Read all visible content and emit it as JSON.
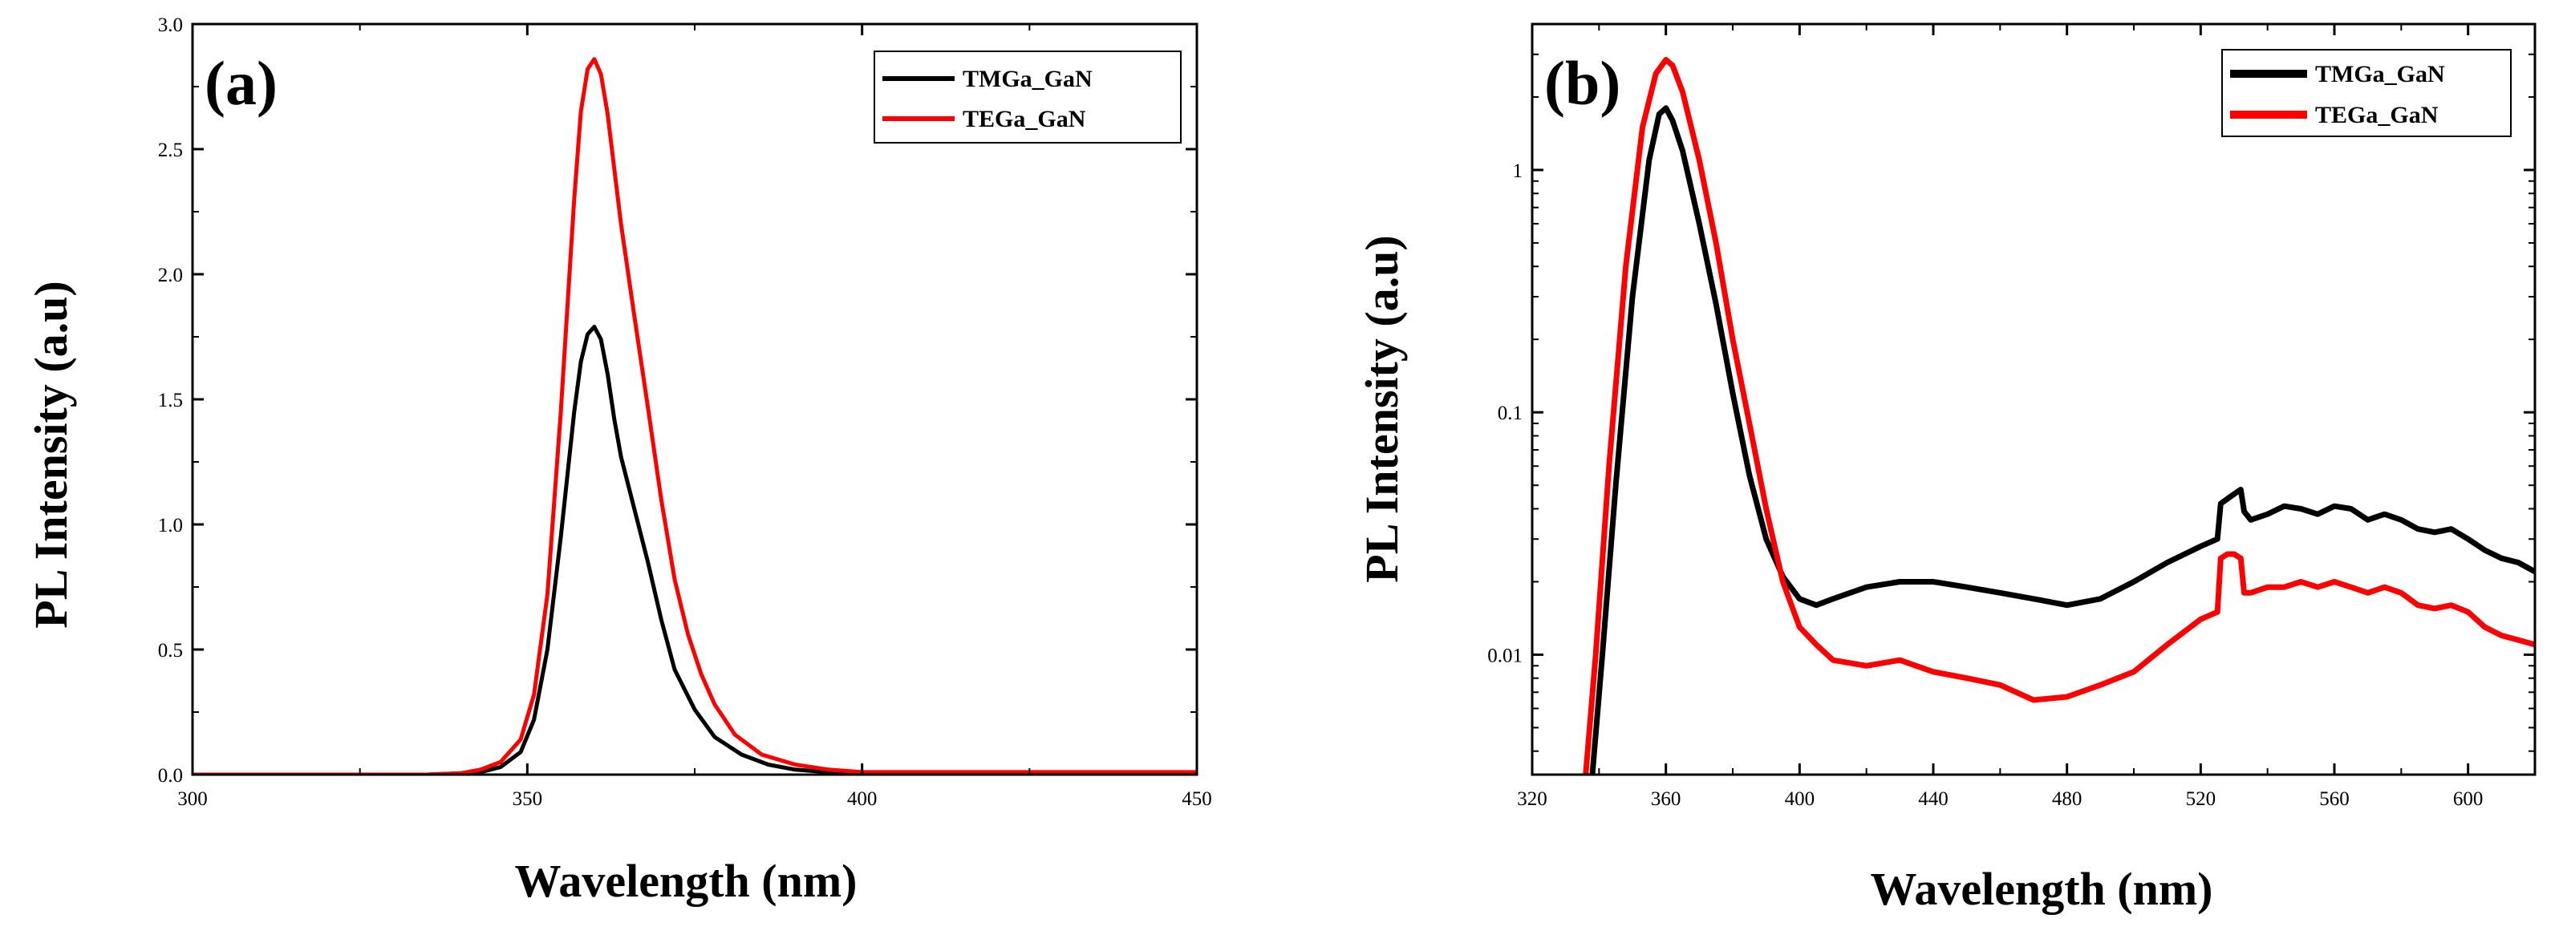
{
  "chart_data": [
    {
      "type": "line",
      "panel_label": "(a)",
      "xlabel": "Wavelength (nm)",
      "ylabel": "PL Intensity (a.u)",
      "xscale": "linear",
      "yscale": "linear",
      "xlim": [
        300,
        450
      ],
      "ylim": [
        0,
        3.0
      ],
      "x_ticks": [
        300,
        350,
        400,
        450
      ],
      "y_ticks": [
        0.0,
        0.5,
        1.0,
        1.5,
        2.0,
        2.5,
        3.0
      ],
      "x_tick_labels": [
        "300",
        "350",
        "400",
        "450"
      ],
      "y_tick_labels": [
        "0.0",
        "0.5",
        "1.0",
        "1.5",
        "2.0",
        "2.5",
        "3.0"
      ],
      "legend_position": "top-right",
      "series": [
        {
          "name": "TMGa_GaN",
          "color": "#000000",
          "x": [
            300,
            335,
            340,
            343,
            346,
            349,
            351,
            353,
            355,
            357,
            358,
            359,
            360,
            361,
            362,
            363,
            364,
            366,
            368,
            370,
            372,
            375,
            378,
            382,
            386,
            390,
            395,
            400,
            410,
            450
          ],
          "y": [
            0.0,
            0.0,
            0.005,
            0.01,
            0.03,
            0.09,
            0.22,
            0.5,
            0.95,
            1.45,
            1.65,
            1.76,
            1.79,
            1.74,
            1.6,
            1.42,
            1.27,
            1.06,
            0.85,
            0.62,
            0.42,
            0.26,
            0.15,
            0.08,
            0.04,
            0.02,
            0.01,
            0.005,
            0.005,
            0.005
          ]
        },
        {
          "name": "TEGa_GaN",
          "color": "#ff0000",
          "x": [
            300,
            335,
            340,
            343,
            346,
            349,
            351,
            353,
            355,
            357,
            358,
            359,
            360,
            361,
            362,
            363,
            364,
            366,
            368,
            370,
            372,
            374,
            376,
            378,
            381,
            385,
            390,
            395,
            400,
            410,
            450
          ],
          "y": [
            0.0,
            0.0,
            0.005,
            0.02,
            0.05,
            0.14,
            0.32,
            0.72,
            1.45,
            2.3,
            2.65,
            2.82,
            2.86,
            2.8,
            2.64,
            2.42,
            2.2,
            1.83,
            1.47,
            1.1,
            0.78,
            0.56,
            0.4,
            0.28,
            0.16,
            0.08,
            0.04,
            0.02,
            0.01,
            0.01,
            0.01
          ]
        }
      ]
    },
    {
      "type": "line",
      "panel_label": "(b)",
      "xlabel": "Wavelength (nm)",
      "ylabel": "PL Intensity (a.u)",
      "xscale": "linear",
      "yscale": "log",
      "xlim": [
        320,
        620
      ],
      "ylim": [
        0.0032,
        4.0
      ],
      "x_ticks": [
        320,
        360,
        400,
        440,
        480,
        520,
        560,
        600
      ],
      "y_ticks": [
        0.01,
        0.1,
        1
      ],
      "x_tick_labels": [
        "320",
        "360",
        "400",
        "440",
        "480",
        "520",
        "560",
        "600"
      ],
      "y_tick_labels": [
        "0.01",
        "0.1",
        "1"
      ],
      "legend_position": "top-right",
      "series": [
        {
          "name": "TMGa_GaN",
          "color": "#000000",
          "x": [
            338,
            341,
            345,
            350,
            355,
            358,
            360,
            362,
            365,
            370,
            375,
            380,
            385,
            390,
            395,
            400,
            405,
            410,
            420,
            430,
            440,
            450,
            460,
            470,
            480,
            490,
            500,
            510,
            520,
            525,
            526,
            528,
            530,
            532,
            533,
            535,
            540,
            545,
            550,
            555,
            560,
            565,
            570,
            575,
            580,
            585,
            590,
            595,
            600,
            605,
            610,
            615,
            620
          ],
          "y": [
            0.0032,
            0.01,
            0.05,
            0.3,
            1.1,
            1.7,
            1.8,
            1.6,
            1.2,
            0.6,
            0.28,
            0.12,
            0.055,
            0.03,
            0.021,
            0.017,
            0.016,
            0.017,
            0.019,
            0.02,
            0.02,
            0.019,
            0.018,
            0.017,
            0.016,
            0.017,
            0.02,
            0.024,
            0.028,
            0.03,
            0.042,
            0.044,
            0.046,
            0.048,
            0.039,
            0.036,
            0.038,
            0.041,
            0.04,
            0.038,
            0.041,
            0.04,
            0.036,
            0.038,
            0.036,
            0.033,
            0.032,
            0.033,
            0.03,
            0.027,
            0.025,
            0.024,
            0.022
          ]
        },
        {
          "name": "TEGa_GaN",
          "color": "#ff0000",
          "x": [
            336,
            339,
            343,
            348,
            353,
            357,
            360,
            362,
            365,
            370,
            375,
            380,
            385,
            390,
            395,
            400,
            405,
            410,
            420,
            430,
            440,
            450,
            460,
            470,
            480,
            490,
            500,
            510,
            520,
            525,
            526,
            528,
            530,
            532,
            533,
            535,
            540,
            545,
            550,
            555,
            560,
            565,
            570,
            575,
            580,
            585,
            590,
            595,
            600,
            605,
            610,
            615,
            620
          ],
          "y": [
            0.0032,
            0.01,
            0.06,
            0.4,
            1.5,
            2.5,
            2.85,
            2.7,
            2.1,
            1.1,
            0.5,
            0.2,
            0.09,
            0.04,
            0.02,
            0.013,
            0.011,
            0.0095,
            0.009,
            0.0095,
            0.0085,
            0.008,
            0.0075,
            0.0065,
            0.0067,
            0.0075,
            0.0085,
            0.011,
            0.014,
            0.015,
            0.025,
            0.026,
            0.026,
            0.025,
            0.018,
            0.018,
            0.019,
            0.019,
            0.02,
            0.019,
            0.02,
            0.019,
            0.018,
            0.019,
            0.018,
            0.016,
            0.0155,
            0.016,
            0.015,
            0.013,
            0.012,
            0.0115,
            0.011
          ]
        }
      ]
    }
  ]
}
